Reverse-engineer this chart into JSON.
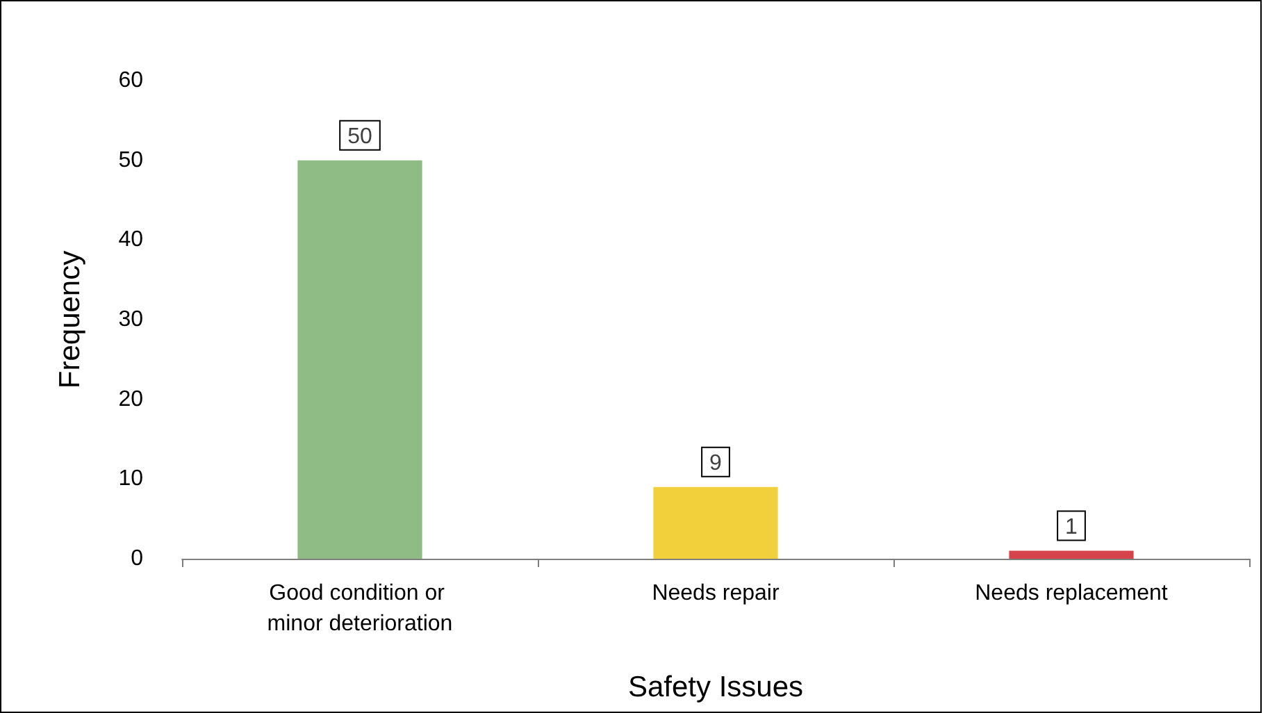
{
  "chart_data": {
    "type": "bar",
    "xlabel": "Safety Issues",
    "ylabel": "Frequency",
    "categories": [
      "Good condition or minor deterioration",
      "Needs repair",
      "Needs replacement"
    ],
    "values": [
      50,
      9,
      1
    ],
    "colors": [
      "#8fbc84",
      "#f2d03b",
      "#d6434a"
    ],
    "ylim": [
      0,
      60
    ],
    "yticks": [
      0,
      10,
      20,
      30,
      40,
      50,
      60
    ],
    "grid": false,
    "data_labels": true
  }
}
